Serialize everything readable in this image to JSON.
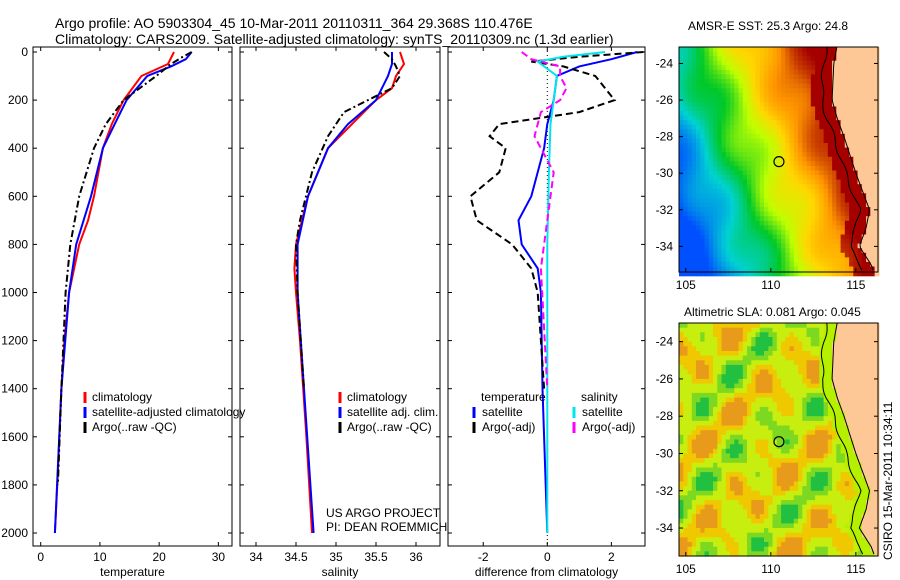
{
  "title_line1": "Argo profile: AO 5903304_45 10-Mar-2011 20110311_364 29.368S 110.476E",
  "title_line2": "Climatology: CARS2009. Satellite-adjusted climatology: synTS_20110309.nc (1.3d earlier)",
  "credit_project": "US ARGO PROJECT",
  "credit_pi": "PI: DEAN ROEMMICH",
  "footer_stamp": "CSIRO 15-Mar-2011 10:34:11",
  "colors": {
    "climatology": "#ff0000",
    "satellite": "#0000ff",
    "argo": "#000000",
    "sal_satellite": "#00e5ee",
    "sal_argo": "#ff00ff"
  },
  "chart_data": [
    {
      "type": "line",
      "xlabel": "temperature",
      "ylabel": "",
      "xlim": [
        -1.3,
        32.3
      ],
      "ylim": [
        2050,
        0
      ],
      "xticks": [
        0,
        10,
        20,
        30
      ],
      "yticks": [
        0,
        200,
        400,
        600,
        800,
        1000,
        1200,
        1400,
        1600,
        1800,
        2000
      ],
      "legend": [
        "climatology",
        "satellite-adjusted climatology",
        "Argo(..raw -QC)"
      ],
      "series": [
        {
          "name": "climatology",
          "style": "solid",
          "depth": [
            0,
            50,
            100,
            150,
            200,
            300,
            400,
            600,
            700,
            800,
            1000,
            1200,
            1400,
            1800,
            2000
          ],
          "values": [
            22.5,
            21.5,
            17,
            15.5,
            14,
            12,
            10.5,
            9,
            8,
            6.5,
            4.8,
            4,
            3.5,
            2.8,
            2.4
          ]
        },
        {
          "name": "satellite-adjusted climatology",
          "style": "solid",
          "depth": [
            0,
            30,
            60,
            100,
            200,
            300,
            400,
            600,
            800,
            1000,
            1400,
            2000
          ],
          "values": [
            25.5,
            24.5,
            22,
            18,
            14.5,
            12.5,
            10.5,
            8.5,
            6,
            4.8,
            3.5,
            2.4
          ]
        },
        {
          "name": "Argo(..raw -QC)",
          "style": "dashdot",
          "depth": [
            0,
            20,
            50,
            100,
            200,
            300,
            400,
            600,
            800,
            1000,
            1400,
            1800
          ],
          "values": [
            25.5,
            24,
            22,
            19.5,
            14,
            11,
            9,
            6.5,
            5,
            4.2,
            3.5,
            2.9
          ]
        }
      ]
    },
    {
      "type": "line",
      "xlabel": "salinity",
      "xlim": [
        33.8,
        36.3
      ],
      "ylim": [
        2050,
        0
      ],
      "xticks": [
        34,
        34.5,
        35,
        35.5,
        36
      ],
      "legend": [
        "climatology",
        "satellite adj. clim.",
        "Argo(..raw -QC)"
      ],
      "series": [
        {
          "name": "climatology",
          "style": "solid",
          "depth": [
            0,
            50,
            100,
            150,
            200,
            300,
            400,
            600,
            800,
            900,
            1000,
            1200,
            1600,
            2000
          ],
          "values": [
            35.8,
            35.85,
            35.75,
            35.7,
            35.5,
            35.2,
            34.9,
            34.65,
            34.5,
            34.48,
            34.5,
            34.55,
            34.63,
            34.7
          ]
        },
        {
          "name": "satellite adj. clim.",
          "style": "solid",
          "depth": [
            0,
            50,
            100,
            200,
            300,
            400,
            600,
            800,
            1000,
            1400,
            2000
          ],
          "values": [
            35.7,
            35.7,
            35.65,
            35.5,
            35.15,
            34.9,
            34.65,
            34.52,
            34.52,
            34.6,
            34.72
          ]
        },
        {
          "name": "Argo(..raw -QC)",
          "style": "dashdot",
          "depth": [
            0,
            30,
            60,
            100,
            150,
            250,
            350,
            500,
            700,
            800,
            1000,
            1400
          ],
          "values": [
            35.6,
            35.7,
            35.75,
            35.8,
            35.7,
            35.1,
            34.9,
            34.7,
            34.55,
            34.5,
            34.52,
            34.6
          ]
        }
      ]
    },
    {
      "type": "line",
      "xlabel": "difference from climatology",
      "xlim": [
        -3.1,
        3.05
      ],
      "ylim": [
        2050,
        0
      ],
      "xticks": [
        -2,
        0,
        2
      ],
      "legend_headers": [
        "temperature",
        "salinity"
      ],
      "legend": [
        "satellite",
        "Argo(-adj)",
        "satellite",
        "Argo(-adj)"
      ],
      "series": [
        {
          "name": "temperature satellite",
          "style": "solid",
          "depth": [
            0,
            30,
            60,
            100,
            200,
            300,
            400,
            600,
            700,
            800,
            900,
            1000,
            1400,
            2000
          ],
          "values": [
            2.8,
            2.0,
            1.0,
            0.3,
            0.2,
            0.0,
            -0.1,
            -0.5,
            -0.9,
            -0.8,
            -0.3,
            -0.2,
            -0.15,
            0
          ]
        },
        {
          "name": "temperature Argo(-adj)",
          "style": "dashed",
          "depth": [
            0,
            20,
            40,
            60,
            100,
            200,
            250,
            300,
            350,
            400,
            500,
            600,
            700,
            800,
            900,
            1000,
            1400
          ],
          "values": [
            3.0,
            1.0,
            -0.5,
            0.5,
            1.5,
            2.1,
            1.0,
            -1.5,
            -1.8,
            -1.3,
            -1.5,
            -2.4,
            -2.2,
            -1.1,
            -0.5,
            -0.3,
            -0.1
          ]
        },
        {
          "name": "salinity satellite",
          "style": "solid",
          "depth": [
            0,
            20,
            40,
            100,
            200,
            300,
            500,
            800,
            2000
          ],
          "values": [
            1.8,
            0.5,
            -0.3,
            0.3,
            0.2,
            0.1,
            0.05,
            0,
            0
          ]
        },
        {
          "name": "salinity Argo(-adj)",
          "style": "dashed",
          "depth": [
            0,
            30,
            60,
            100,
            150,
            200,
            250,
            350,
            400,
            500,
            700,
            900,
            1400
          ],
          "values": [
            -0.8,
            -0.5,
            0.4,
            0.4,
            0.6,
            0.4,
            -0.2,
            -0.4,
            -0.2,
            0.2,
            0,
            -0.2,
            0
          ]
        }
      ]
    }
  ],
  "maps": [
    {
      "title": "AMSR-E SST: 25.3 Argo: 24.8",
      "type": "sst",
      "xticks": [
        "105",
        "110",
        "115"
      ],
      "yticks": [
        "-24",
        "-26",
        "-28",
        "-30",
        "-32",
        "-34"
      ]
    },
    {
      "title": "Altimetric SLA: 0.081 Argo: 0.045",
      "type": "sla",
      "xticks": [
        "105",
        "110",
        "115"
      ],
      "yticks": [
        "-24",
        "-26",
        "-28",
        "-30",
        "-32",
        "-34"
      ]
    }
  ]
}
